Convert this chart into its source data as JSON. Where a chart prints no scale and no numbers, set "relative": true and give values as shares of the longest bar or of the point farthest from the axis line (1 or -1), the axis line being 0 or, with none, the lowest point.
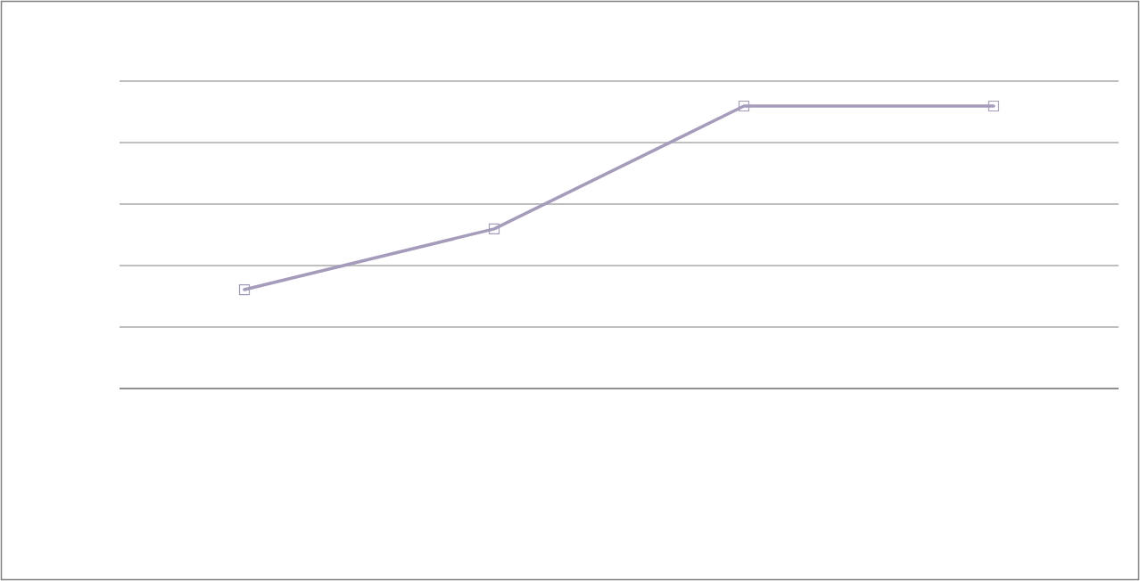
{
  "chart_data": {
    "type": "line",
    "relative": true,
    "categories": [
      null,
      null,
      null,
      null
    ],
    "series": [
      {
        "color": "#a59bbb",
        "values": [
          0.35,
          0.565,
          1,
          1
        ]
      }
    ],
    "marker": "square",
    "grid": "y"
  }
}
